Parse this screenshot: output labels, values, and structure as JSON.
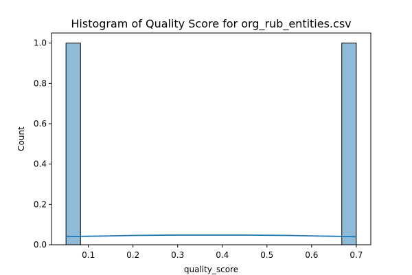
{
  "chart_data": {
    "type": "bar",
    "title": "Histogram of Quality Score for org_rub_entities.csv",
    "xlabel": "quality_score",
    "ylabel": "Count",
    "xlim": [
      0.0175,
      0.7325
    ],
    "ylim": [
      0.0,
      1.05
    ],
    "xticks": [
      0.1,
      0.2,
      0.3,
      0.4,
      0.5,
      0.6,
      0.7
    ],
    "xtick_labels": [
      "0.1",
      "0.2",
      "0.3",
      "0.4",
      "0.5",
      "0.6",
      "0.7"
    ],
    "yticks": [
      0.0,
      0.2,
      0.4,
      0.6,
      0.8,
      1.0
    ],
    "ytick_labels": [
      "0.0",
      "0.2",
      "0.4",
      "0.6",
      "0.8",
      "1.0"
    ],
    "bins": [
      {
        "x0": 0.05,
        "x1": 0.0825,
        "count": 1
      },
      {
        "x0": 0.6675,
        "x1": 0.7,
        "count": 1
      }
    ],
    "kde": {
      "x": [
        0.05,
        0.1,
        0.15,
        0.2,
        0.25,
        0.3,
        0.35,
        0.4,
        0.45,
        0.5,
        0.55,
        0.6,
        0.65,
        0.7
      ],
      "y": [
        0.04,
        0.042,
        0.044,
        0.046,
        0.047,
        0.048,
        0.048,
        0.048,
        0.048,
        0.047,
        0.046,
        0.044,
        0.042,
        0.04
      ]
    },
    "grid": false,
    "colors": {
      "bar_fill": "#8fbbd9",
      "bar_edge": "#000000",
      "kde_line": "#1f77b4",
      "axes": "#000000"
    }
  }
}
